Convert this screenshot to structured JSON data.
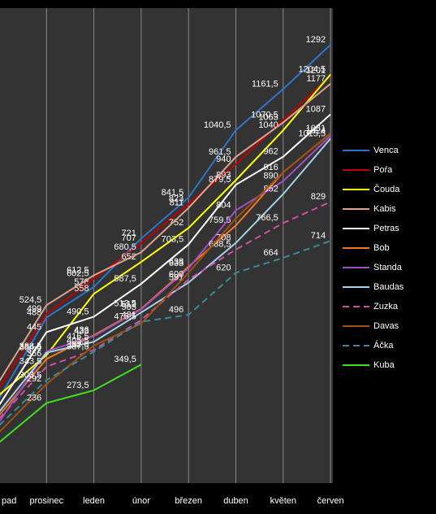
{
  "chart_data": {
    "type": "line",
    "categories": [
      "pad",
      "prosinec",
      "leden",
      "únor",
      "březen",
      "duben",
      "květen",
      "červen"
    ],
    "ylim": [
      0,
      1400
    ],
    "grid": true,
    "legend": "right",
    "series": [
      {
        "name": "Venca",
        "color": "#2e75c9",
        "values": [
          250,
          488,
          578,
          721,
          841.5,
          1040.5,
          1161.5,
          1292
        ],
        "value_labels": [
          null,
          "488",
          "578",
          "721",
          "841,5",
          "1040,5",
          "1161,5",
          "1292"
        ]
      },
      {
        "name": "Poŕa",
        "color": "#c00000",
        "values": [
          280,
          499,
          602.5,
          707,
          823,
          940,
          1070.5,
          1201
        ],
        "value_labels": [
          null,
          "499",
          "602,5",
          "707",
          "823",
          "940",
          "1070,5",
          "1201"
        ]
      },
      {
        "name": "Čouda",
        "color": "#ffff00",
        "values": [
          260,
          377,
          558,
          652,
          752,
          893,
          1040,
          1204.5
        ],
        "value_labels": [
          null,
          "377",
          "558",
          "652",
          "752",
          "893",
          "1040",
          "1204,5"
        ]
      },
      {
        "name": "Kabis",
        "color": "#e0a08c",
        "values": [
          300,
          524.5,
          612.5,
          680.5,
          811,
          961.5,
          1063,
          1177
        ],
        "value_labels": [
          null,
          "524,5",
          "612,5",
          "680,5",
          "811",
          "961,5",
          "1063",
          "1177"
        ]
      },
      {
        "name": "Petras",
        "color": "#ffffff",
        "values": [
          230,
          445,
          490.5,
          587.5,
          703.5,
          879.5,
          962,
          1087
        ],
        "value_labels": [
          null,
          "445",
          "490,5",
          "587,5",
          "703,5",
          "879,5",
          "962",
          "1087"
        ]
      },
      {
        "name": "Bob",
        "color": "#f07820",
        "values": [
          200,
          366,
          436,
          513.5,
          638,
          759.5,
          916,
          1031
        ],
        "value_labels": [
          null,
          "366",
          "436",
          "513,5",
          "638",
          "759,5",
          "916",
          "1031"
        ]
      },
      {
        "name": "Standa",
        "color": "#a050c0",
        "values": [
          180,
          388.5,
          433,
          512,
          633,
          804,
          890,
          1024
        ],
        "value_labels": [
          null,
          "388,5",
          "433",
          "512",
          "633",
          "804",
          "890",
          "1024"
        ]
      },
      {
        "name": "Baudas",
        "color": "#a8d0e8",
        "values": [
          210,
          384.5,
          416.5,
          503,
          591,
          708,
          852,
          1015.5
        ],
        "value_labels": [
          null,
          "384,5",
          "416,5",
          "503",
          "591",
          "708",
          "852",
          "1015,5"
        ]
      },
      {
        "name": "Zuzka",
        "color": "#d050a0",
        "dash": true,
        "values": [
          190,
          343.5,
          392.5,
          481,
          600,
          688.5,
          766.5,
          829
        ],
        "value_labels": [
          null,
          "343,5",
          "392,5",
          "481",
          "600",
          "688,5",
          "766,5",
          "829"
        ]
      },
      {
        "name": "Davas",
        "color": "#a05010",
        "values": [
          150,
          292,
          405.5,
          470,
          620,
          780,
          916,
          1031
        ],
        "value_labels": [
          null,
          "292",
          "405,5",
          null,
          null,
          null,
          null,
          null
        ]
      },
      {
        "name": "Áčka",
        "color": "#3a8a9a",
        "dash": true,
        "values": [
          170,
          303.5,
          387.5,
          475.5,
          496,
          620,
          664,
          714
        ],
        "value_labels": [
          null,
          "303,5",
          "387,5",
          "475,5",
          "496",
          "620",
          "664",
          "714"
        ]
      },
      {
        "name": "Kuba",
        "color": "#40e020",
        "values": [
          120,
          236,
          273.5,
          349.5,
          null,
          null,
          null,
          null
        ],
        "value_labels": [
          null,
          "236",
          "273,5",
          "349,5",
          null,
          null,
          null,
          null
        ]
      }
    ]
  }
}
